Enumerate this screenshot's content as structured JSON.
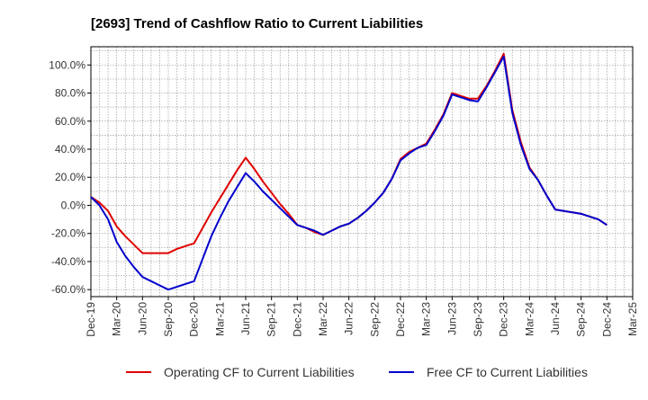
{
  "chart_data": {
    "type": "line",
    "title": "[2693]  Trend of Cashflow Ratio to Current Liabilities",
    "xlabel": "",
    "ylabel": "",
    "x_tick_labels": [
      "Dec-19",
      "Mar-20",
      "Jun-20",
      "Sep-20",
      "Dec-20",
      "Mar-21",
      "Jun-21",
      "Sep-21",
      "Dec-21",
      "Mar-22",
      "Jun-22",
      "Sep-22",
      "Dec-22",
      "Mar-23",
      "Jun-23",
      "Sep-23",
      "Dec-23",
      "Mar-24",
      "Jun-24",
      "Sep-24",
      "Dec-24",
      "Mar-25"
    ],
    "y_tick_labels": [
      "100.0%",
      "80.0%",
      "60.0%",
      "40.0%",
      "20.0%",
      "0.0%",
      "-20.0%",
      "-40.0%",
      "-60.0%"
    ],
    "y_ticks": [
      100,
      80,
      60,
      40,
      20,
      0,
      -20,
      -40,
      -60
    ],
    "ylim": [
      -65,
      113
    ],
    "grid": true,
    "legend_position": "bottom",
    "x": [
      "2019-12",
      "2020-01",
      "2020-02",
      "2020-03",
      "2020-04",
      "2020-05",
      "2020-06",
      "2020-07",
      "2020-08",
      "2020-09",
      "2020-10",
      "2020-11",
      "2020-12",
      "2021-01",
      "2021-02",
      "2021-03",
      "2021-04",
      "2021-05",
      "2021-06",
      "2021-07",
      "2021-08",
      "2021-09",
      "2021-10",
      "2021-11",
      "2021-12",
      "2022-01",
      "2022-02",
      "2022-03",
      "2022-04",
      "2022-05",
      "2022-06",
      "2022-07",
      "2022-08",
      "2022-09",
      "2022-10",
      "2022-11",
      "2022-12",
      "2023-01",
      "2023-02",
      "2023-03",
      "2023-04",
      "2023-05",
      "2023-06",
      "2023-07",
      "2023-08",
      "2023-09",
      "2023-10",
      "2023-11",
      "2023-12",
      "2024-01",
      "2024-02",
      "2024-03",
      "2024-04",
      "2024-05",
      "2024-06",
      "2024-07",
      "2024-08",
      "2024-09",
      "2024-10",
      "2024-11",
      "2024-12"
    ],
    "series": [
      {
        "name": "Operating CF to Current Liabilities",
        "color": "#e00000",
        "values": [
          6,
          2,
          -4,
          -15,
          -22,
          -28,
          -34,
          -34,
          -34,
          -34,
          -31,
          -29,
          -27,
          -16,
          -5,
          5,
          15,
          25,
          34,
          26,
          17,
          9,
          1,
          -6,
          -14,
          -16,
          -19,
          -21,
          -18,
          -15,
          -13,
          -9,
          -4,
          2,
          9,
          19,
          33,
          38,
          41,
          44,
          54,
          65,
          80,
          78,
          76,
          76,
          85,
          96,
          108,
          68,
          45,
          27,
          18,
          7,
          -3,
          -4,
          -5,
          -6,
          -8,
          -10,
          -14
        ]
      },
      {
        "name": "Free CF to Current Liabilities",
        "color": "#0000cc",
        "values": [
          6,
          0,
          -10,
          -26,
          -36,
          -44,
          -51,
          -54,
          -57,
          -60,
          -58,
          -56,
          -54,
          -38,
          -22,
          -9,
          3,
          13,
          23,
          17,
          10,
          4,
          -2,
          -8,
          -14,
          -16,
          -18,
          -21,
          -18,
          -15,
          -13,
          -9,
          -4,
          2,
          9,
          19,
          32,
          37,
          41,
          43,
          53,
          64,
          79,
          77,
          75,
          74,
          84,
          95,
          106,
          66,
          43,
          26,
          18,
          7,
          -3,
          -4,
          -5,
          -6,
          -8,
          -10,
          -14
        ]
      }
    ]
  }
}
